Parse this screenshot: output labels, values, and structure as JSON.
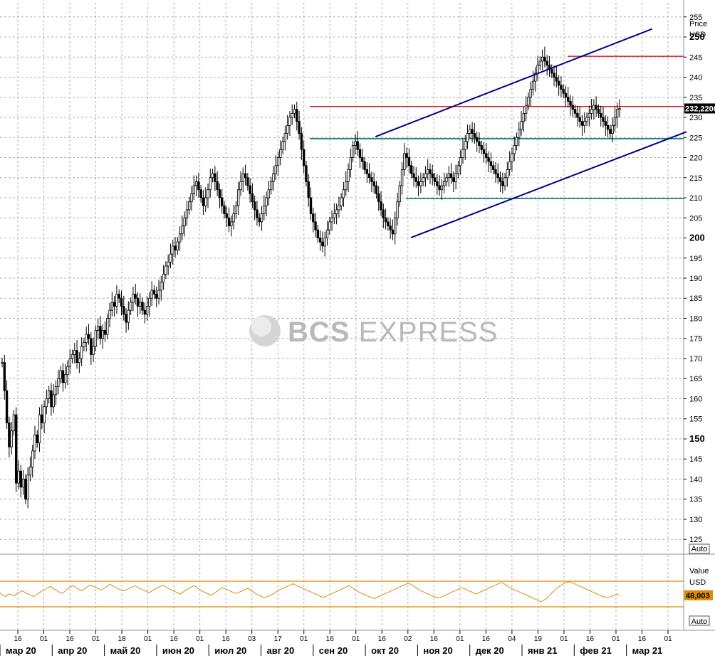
{
  "chart_data": [
    {
      "type": "candlestick",
      "units_label": "Price",
      "currency_label": "USD",
      "y_ticks": [
        125,
        130,
        135,
        140,
        145,
        150,
        155,
        160,
        165,
        170,
        175,
        180,
        185,
        190,
        195,
        200,
        205,
        210,
        215,
        220,
        225,
        230,
        235,
        240,
        245,
        250,
        255
      ],
      "y_ticks_bold": [
        150,
        200,
        250
      ],
      "ylim": [
        121.5,
        258.5
      ],
      "last_value_label": "232,2200",
      "last_value": 232.22,
      "auto_label": "Auto",
      "grid": true,
      "months": [
        "мар 20",
        "апр 20",
        "май 20",
        "июн 20",
        "июл 20",
        "авг 20",
        "сен 20",
        "окт 20",
        "ноя 20",
        "дек 20",
        "янв 21",
        "фев 21",
        "мар 21"
      ],
      "day_labels": [
        "16",
        "01",
        "16",
        "01",
        "18",
        "01",
        "16",
        "01",
        "16",
        "03",
        "17",
        "01",
        "16",
        "01",
        "16",
        "02",
        "16",
        "01",
        "16",
        "04",
        "19",
        "01",
        "16",
        "01",
        "16",
        "01"
      ],
      "daily_close": [
        169,
        162,
        154,
        148,
        152,
        156,
        139,
        142,
        138,
        140,
        135,
        141,
        143,
        147,
        151,
        149,
        156,
        154,
        158,
        160,
        162,
        158,
        161,
        163,
        165,
        167,
        164,
        166,
        168,
        170,
        171,
        172,
        169,
        170,
        173,
        174,
        176,
        175,
        171,
        173,
        177,
        178,
        175,
        177,
        176,
        180,
        182,
        184,
        183,
        186,
        185,
        183,
        181,
        179,
        182,
        184,
        186,
        185,
        183,
        184,
        182,
        181,
        183,
        185,
        187,
        186,
        185,
        187,
        189,
        191,
        193,
        194,
        196,
        198,
        197,
        199,
        201,
        203,
        205,
        207,
        209,
        211,
        213,
        214,
        212,
        210,
        208,
        210,
        212,
        215,
        216,
        214,
        212,
        210,
        208,
        206,
        205,
        203,
        204,
        206,
        208,
        212,
        214,
        216,
        215,
        213,
        211,
        209,
        207,
        205,
        204,
        206,
        208,
        210,
        212,
        214,
        216,
        218,
        220,
        222,
        224,
        226,
        228,
        230,
        231,
        232,
        229,
        226,
        222,
        218,
        214,
        210,
        206,
        204,
        202,
        200,
        199,
        198,
        200,
        202,
        204,
        205,
        206,
        207,
        208,
        210,
        212,
        214,
        217,
        220,
        223,
        224,
        222,
        220,
        219,
        217,
        216,
        215,
        214,
        213,
        211,
        209,
        207,
        205,
        204,
        203,
        202,
        201,
        205,
        209,
        213,
        217,
        221,
        220,
        218,
        216,
        215,
        214,
        213,
        214,
        215,
        216,
        217,
        216,
        215,
        214,
        213,
        212,
        213,
        214,
        215,
        216,
        215,
        214,
        216,
        218,
        220,
        222,
        224,
        226,
        227,
        226,
        225,
        224,
        223,
        222,
        221,
        220,
        219,
        218,
        217,
        216,
        215,
        214,
        213,
        215,
        217,
        219,
        221,
        223,
        225,
        227,
        229,
        231,
        233,
        235,
        237,
        239,
        241,
        243,
        244,
        245,
        244,
        243,
        242,
        241,
        240,
        239,
        238,
        237,
        236,
        235,
        234,
        233,
        232,
        231,
        230,
        229,
        228,
        229,
        230,
        231,
        232,
        233,
        232,
        231,
        230,
        229,
        228,
        227,
        226,
        228,
        230,
        232,
        232.22
      ],
      "hlines": [
        {
          "value": 245.2,
          "color": "#cc0000"
        },
        {
          "value": 232.7,
          "color": "#cc0000"
        },
        {
          "value": 224.7,
          "color": "#007070"
        },
        {
          "value": 209.8,
          "color": "#007070"
        }
      ],
      "trend_channel_upper": [
        {
          "x": 0.525,
          "y": 225.2
        },
        {
          "x": 0.912,
          "y": 252.0
        }
      ],
      "trend_channel_lower": [
        {
          "x": 0.575,
          "y": 200.1
        },
        {
          "x": 0.96,
          "y": 226.4
        }
      ]
    },
    {
      "type": "line",
      "units_label": "Value",
      "currency_label": "USD",
      "last_value_label": "48,003",
      "last_value": 48.003,
      "auto_label": "Auto",
      "hlines": [
        70,
        30
      ],
      "values": [
        52,
        48,
        46,
        50,
        49,
        47,
        51,
        53,
        55,
        52,
        50,
        48,
        46,
        49,
        52,
        55,
        57,
        60,
        62,
        58,
        56,
        53,
        51,
        54,
        58,
        61,
        63,
        60,
        57,
        55,
        58,
        61,
        64,
        62,
        60,
        58,
        56,
        59,
        62,
        65,
        63,
        60,
        58,
        56,
        55,
        57,
        59,
        61,
        63,
        60,
        58,
        56,
        54,
        52,
        55,
        58,
        60,
        62,
        64,
        61,
        58,
        56,
        54,
        52,
        50,
        53,
        56,
        59,
        61,
        63,
        60,
        57,
        54,
        52,
        50,
        48,
        51,
        54,
        57,
        60,
        58,
        56,
        54,
        52,
        51,
        53,
        55,
        57,
        59,
        56,
        53,
        50,
        48,
        46,
        44,
        46,
        48,
        50,
        53,
        56,
        58,
        60,
        62,
        64,
        66,
        64,
        62,
        60,
        58,
        56,
        54,
        52,
        50,
        48,
        46,
        45,
        47,
        49,
        51,
        53,
        55,
        57,
        59,
        61,
        63,
        60,
        57,
        54,
        52,
        50,
        48,
        46,
        44,
        43,
        45,
        47,
        49,
        51,
        53,
        55,
        57,
        59,
        61,
        63,
        65,
        67,
        65,
        62,
        59,
        56,
        54,
        52,
        50,
        48,
        46,
        45,
        44,
        46,
        48,
        50,
        52,
        54,
        56,
        58,
        60,
        58,
        56,
        54,
        52,
        50,
        52,
        54,
        56,
        58,
        60,
        62,
        64,
        66,
        68,
        66,
        63,
        60,
        58,
        56,
        54,
        52,
        50,
        48,
        46,
        44,
        42,
        40,
        38,
        40,
        43,
        47,
        52,
        56,
        60,
        63,
        66,
        68,
        69,
        68,
        66,
        64,
        62,
        60,
        58,
        56,
        54,
        52,
        50,
        48,
        46,
        45,
        44,
        46,
        48,
        50,
        48.003
      ]
    }
  ],
  "watermark": {
    "brand_a": "BCS",
    "brand_b": " EXPRESS"
  },
  "colors": {
    "candle": "#000000",
    "channel": "#00008b",
    "support": "#007070",
    "resistance": "#cc0000",
    "oscillator": "#e08a00",
    "grid": "#b0b0b0"
  }
}
